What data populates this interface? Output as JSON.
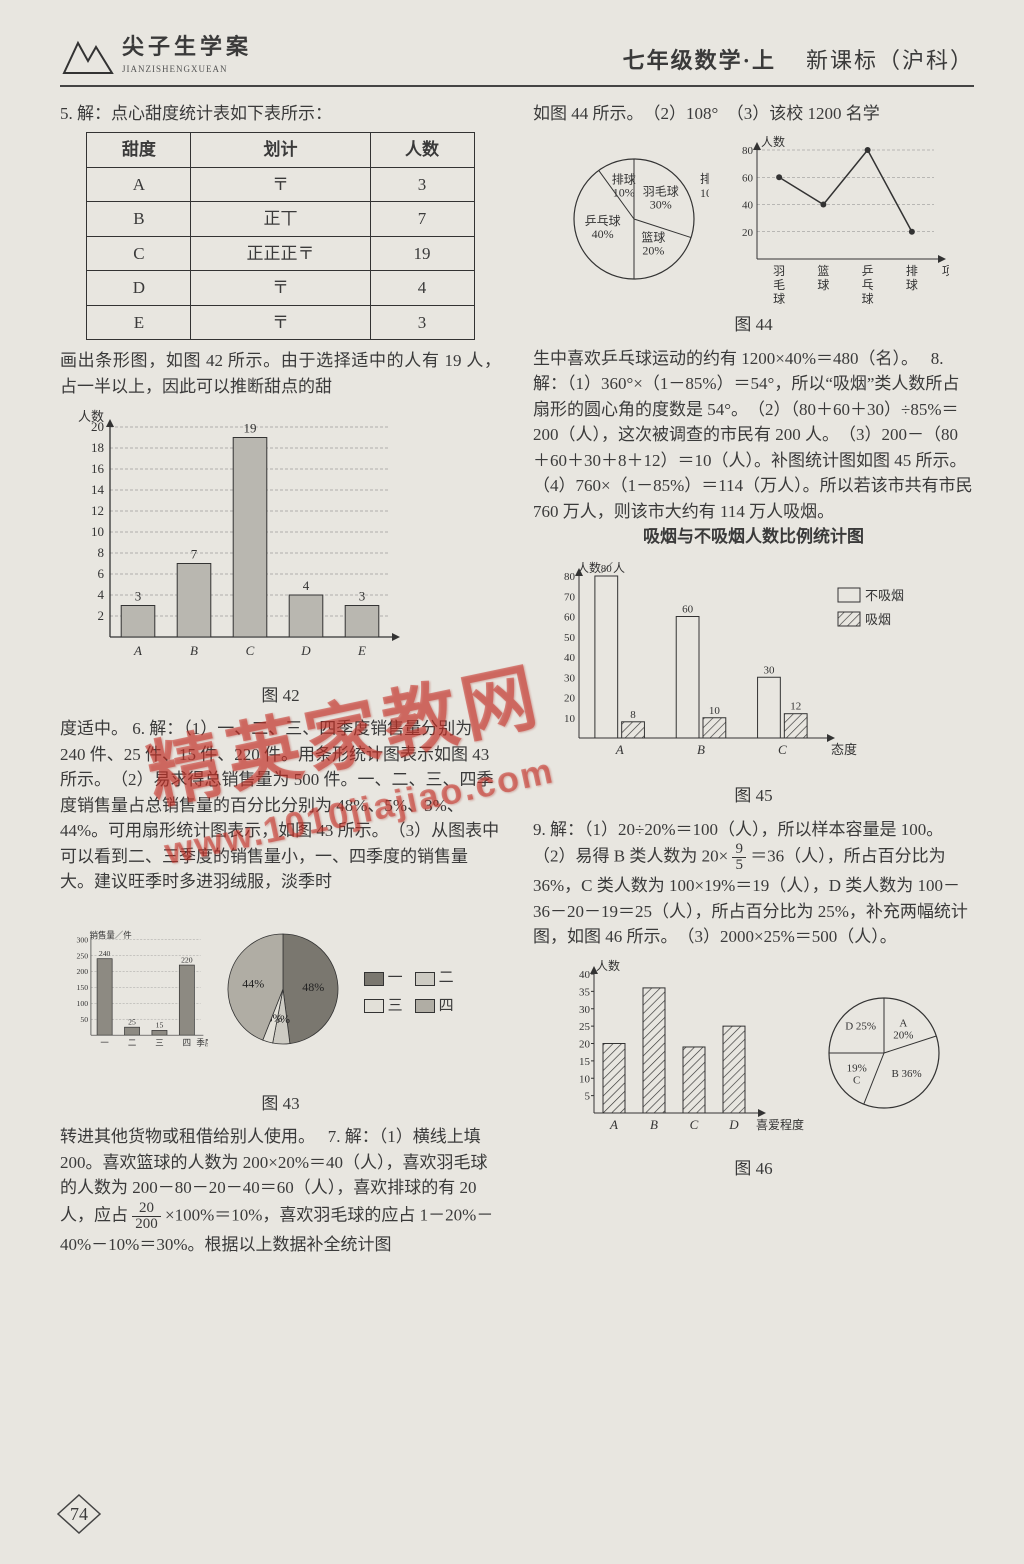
{
  "header": {
    "logo_main": "尖子生学案",
    "logo_pinyin": "JIANZISHENGXUEAN",
    "title_left": "七年级数学·上",
    "title_right": "新课标（沪科）"
  },
  "watermark": {
    "main": "精英家教网",
    "url": "www.1010jiajiao.com"
  },
  "page_number": "74",
  "q5": {
    "intro": "5. 解：点心甜度统计表如下表所示：",
    "table": {
      "headers": [
        "甜度",
        "划计",
        "人数"
      ],
      "rows": [
        [
          "A",
          "〒",
          "3"
        ],
        [
          "B",
          "正丅",
          "7"
        ],
        [
          "C",
          "正正正〒",
          "19"
        ],
        [
          "D",
          "〒",
          "4"
        ],
        [
          "E",
          "〒",
          "3"
        ]
      ]
    },
    "after_table": "画出条形图，如图 42 所示。由于选择适中的人有 19 人，占一半以上，因此可以推断甜点的甜",
    "bar_chart": {
      "type": "bar",
      "y_label": "人数",
      "categories": [
        "A",
        "B",
        "C",
        "D",
        "E"
      ],
      "values": [
        3,
        7,
        19,
        4,
        3
      ],
      "value_labels": [
        "3",
        "7",
        "19",
        "4",
        "3"
      ],
      "y_ticks": [
        2,
        4,
        6,
        8,
        10,
        12,
        14,
        16,
        18,
        20
      ],
      "ylim": [
        0,
        20
      ],
      "bar_fill": "#b9b7b0",
      "bar_stroke": "#333333",
      "grid_color": "#777777",
      "background": "#e8e6e0",
      "bar_width": 0.6,
      "caption": "图 42"
    },
    "tail": "度适中。"
  },
  "q6": {
    "text_a": "6. 解：（1）一、二、三、四季度销售量分别为 240 件、25 件、15 件、220 件。用条形统计图表示如图 43 所示。　（2）易求得总销售量为 500 件。一、二、三、四季度销售量占总销售量的百分比分别为 48%、5%、3%、44%。可用扇形统计图表示，如图 43 所示。　（3）从图表中可以看到二、三季度的销售量小，一、四季度的销售量大。建议旺季时多进羽绒服，淡季时",
    "bar_chart": {
      "type": "bar",
      "y_label": "销售量／件",
      "x_label": "季度",
      "categories": [
        "一",
        "二",
        "三",
        "四"
      ],
      "values": [
        240,
        25,
        15,
        220
      ],
      "value_labels": [
        "240",
        "25",
        "15",
        "220"
      ],
      "y_ticks": [
        50,
        100,
        150,
        200,
        250,
        300
      ],
      "ylim": [
        0,
        300
      ],
      "bar_fill": "#8d8a82",
      "bar_stroke": "#333333",
      "grid_color": "#888888",
      "bar_width": 0.55
    },
    "pie_chart": {
      "type": "pie",
      "slices": [
        {
          "label": "一",
          "pct": 48,
          "text": "48%",
          "fill": "#7a776f"
        },
        {
          "label": "二",
          "pct": 5,
          "text": "5%",
          "fill": "#cdcbc3"
        },
        {
          "label": "三",
          "pct": 3,
          "text": "3%",
          "fill": "#e2e0d8"
        },
        {
          "label": "四",
          "pct": 44,
          "text": "44%",
          "fill": "#b0ada4"
        }
      ],
      "legend": [
        "一",
        "二",
        "三",
        "四"
      ],
      "legend_fills": [
        "#7a776f",
        "#cdcbc3",
        "#e2e0d8",
        "#b0ada4"
      ]
    },
    "caption": "图 43",
    "text_b": "转进其他货物或租借给别人使用。"
  },
  "q7": {
    "text": "7. 解：（1）横线上填 200。喜欢篮球的人数为 200×20%＝40（人），喜欢羽毛球的人数为 200－80－20－40＝60（人），喜欢排球的有 20 人，应占 ",
    "frac1_num": "20",
    "frac1_den": "200",
    "text2": "×100%＝10%，喜欢羽毛球的应占 1－20%－40%－10%＝30%。根据以上数据补全统计图"
  },
  "right_top": {
    "text_a": "如图 44 所示。　（2）108°　（3）该校 1200 名学",
    "pie_chart": {
      "type": "pie",
      "slices": [
        {
          "name": "羽毛球",
          "pct": 30,
          "text": "羽毛球\n30%"
        },
        {
          "name": "篮球",
          "pct": 20,
          "text": "篮球\n20%"
        },
        {
          "name": "乒乓球",
          "pct": 40,
          "text": "乒乓球\n40%"
        },
        {
          "name": "排球",
          "pct": 10,
          "text": "排球\n10%"
        }
      ],
      "stroke": "#333333",
      "fill": "#e8e6e0"
    },
    "line_chart": {
      "type": "line",
      "y_label": "人数",
      "x_label": "项目",
      "categories": [
        "羽毛球",
        "篮球",
        "乒乓球",
        "排球"
      ],
      "values": [
        60,
        40,
        80,
        20
      ],
      "y_ticks": [
        20,
        40,
        60,
        80
      ],
      "ylim": [
        0,
        80
      ],
      "line_color": "#333333",
      "marker": "circle",
      "grid_color": "#888888"
    },
    "caption": "图 44",
    "text_b": "生中喜欢乒乓球运动的约有 1200×40%＝480（名）。"
  },
  "q8": {
    "text": "8. 解：（1）360°×（1－85%）＝54°，所以“吸烟”类人数所占扇形的圆心角的度数是 54°。　（2）（80＋60＋30）÷85%＝200（人），这次被调查的市民有 200 人。　（3）200－（80＋60＋30＋8＋12）＝10（人）。补图统计图如图 45 所示。　（4）760×（1－85%）＝114（万人）。所以若该市共有市民 760 万人，则该市大约有 114 万人吸烟。",
    "chart_title": "吸烟与不吸烟人数比例统计图",
    "grouped_bar": {
      "type": "grouped-bar",
      "y_label": "人数／人",
      "x_label": "态度",
      "categories": [
        "A",
        "B",
        "C"
      ],
      "series": [
        {
          "name": "不吸烟",
          "values": [
            80,
            60,
            30
          ],
          "fill": "#e8e6e0",
          "pattern": "none"
        },
        {
          "name": "吸烟",
          "values": [
            8,
            10,
            12
          ],
          "fill": "#8a877f",
          "pattern": "hatch"
        }
      ],
      "value_labels": [
        [
          "80",
          "8"
        ],
        [
          "60",
          "10"
        ],
        [
          "30",
          "12"
        ]
      ],
      "y_ticks": [
        10,
        20,
        30,
        40,
        50,
        60,
        70,
        80
      ],
      "ylim": [
        0,
        80
      ],
      "bar_stroke": "#333333"
    },
    "caption": "图 45"
  },
  "q9": {
    "text_a": "9. 解：（1）20÷20%＝100（人），所以样本容量是 100。　（2）易得 B 类人数为 20×",
    "frac_num": "9",
    "frac_den": "5",
    "text_b": "＝36（人），所占百分比为 36%，C 类人数为 100×19%＝19（人），D 类人数为 100－36－20－19＝25（人），所占百分比为 25%，补充两幅统计图，如图 46 所示。　（3）2000×25%＝500（人）。",
    "bar_chart": {
      "type": "bar",
      "y_label": "人数",
      "x_label": "喜爱程度",
      "categories": [
        "A",
        "B",
        "C",
        "D"
      ],
      "values": [
        20,
        36,
        19,
        25
      ],
      "y_ticks": [
        5,
        10,
        15,
        20,
        25,
        30,
        35,
        40
      ],
      "ylim": [
        0,
        40
      ],
      "bar_fill": "#e8e6e0",
      "bar_pattern": "hatch",
      "bar_stroke": "#333333"
    },
    "pie_chart": {
      "type": "pie",
      "slices": [
        {
          "name": "A",
          "pct": 20,
          "text": "A\n20%"
        },
        {
          "name": "B",
          "pct": 36,
          "text": "B 36%"
        },
        {
          "name": "C",
          "pct": 19,
          "text": "19%\nC"
        },
        {
          "name": "D",
          "pct": 25,
          "text": "D 25%"
        }
      ],
      "stroke": "#333333",
      "fill": "#e8e6e0"
    },
    "caption": "图 46"
  }
}
